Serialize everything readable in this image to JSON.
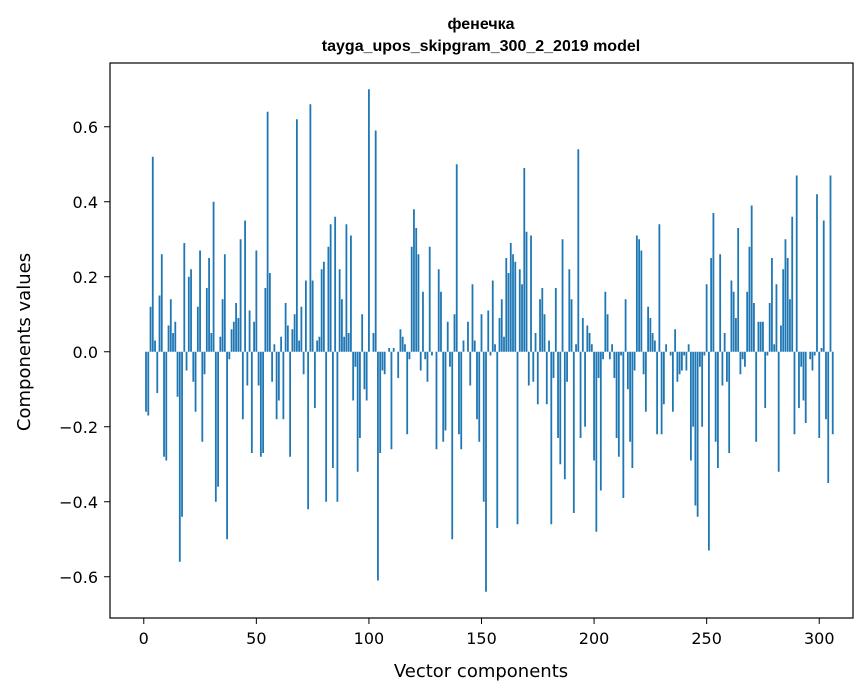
{
  "chart_data": {
    "type": "bar",
    "title": "фенечка",
    "subtitle": "tayga_upos_skipgram_300_2_2019 model",
    "xlabel": "Vector components",
    "ylabel": "Components values",
    "xlim": [
      -15,
      315
    ],
    "ylim": [
      -0.71,
      0.77
    ],
    "xticks": [
      0,
      50,
      100,
      150,
      200,
      250,
      300
    ],
    "yticks": [
      -0.6,
      -0.4,
      -0.2,
      0.0,
      0.2,
      0.4,
      0.6
    ],
    "xtick_labels": [
      "0",
      "50",
      "100",
      "150",
      "200",
      "250",
      "300"
    ],
    "ytick_labels": [
      "−0.6",
      "−0.4",
      "−0.2",
      "0.0",
      "0.2",
      "0.4",
      "0.6"
    ],
    "bar_color": "#1f77b4",
    "grid": false,
    "x_start": 0,
    "values": [
      0.0,
      -0.16,
      -0.17,
      0.12,
      0.52,
      0.03,
      -0.11,
      0.15,
      0.26,
      -0.28,
      -0.29,
      0.07,
      0.14,
      0.05,
      0.08,
      -0.12,
      -0.56,
      -0.44,
      0.29,
      -0.05,
      0.2,
      0.22,
      -0.08,
      -0.16,
      0.12,
      0.27,
      -0.24,
      -0.06,
      0.17,
      0.25,
      0.05,
      0.4,
      -0.4,
      -0.36,
      0.04,
      0.14,
      0.26,
      -0.5,
      -0.02,
      0.06,
      0.08,
      0.13,
      0.09,
      0.3,
      -0.18,
      0.35,
      -0.09,
      0.11,
      -0.27,
      0.08,
      0.27,
      -0.09,
      -0.28,
      -0.27,
      0.17,
      0.64,
      0.21,
      -0.08,
      0.02,
      -0.18,
      -0.13,
      0.04,
      -0.18,
      0.13,
      0.07,
      -0.28,
      0.06,
      0.1,
      0.62,
      0.03,
      0.12,
      -0.06,
      0.19,
      -0.42,
      0.66,
      0.19,
      -0.15,
      0.03,
      0.04,
      0.22,
      0.24,
      -0.4,
      0.28,
      0.34,
      -0.31,
      0.36,
      -0.4,
      0.22,
      0.14,
      0.04,
      0.34,
      0.05,
      0.31,
      -0.13,
      -0.04,
      -0.32,
      -0.23,
      0.1,
      -0.1,
      -0.13,
      0.7,
      0.0,
      0.05,
      0.59,
      -0.61,
      -0.27,
      -0.05,
      -0.06,
      0.0,
      0.01,
      -0.26,
      0.01,
      0.0,
      -0.07,
      0.06,
      0.04,
      0.02,
      -0.22,
      -0.02,
      0.28,
      0.38,
      0.33,
      0.26,
      -0.05,
      0.16,
      -0.02,
      -0.08,
      0.28,
      -0.01,
      0.0,
      -0.26,
      0.22,
      0.16,
      -0.24,
      -0.21,
      0.08,
      -0.04,
      -0.5,
      0.1,
      0.5,
      -0.22,
      -0.26,
      0.03,
      0.0,
      0.08,
      -0.09,
      0.18,
      0.03,
      -0.18,
      -0.24,
      0.1,
      -0.4,
      -0.64,
      0.11,
      -0.01,
      0.19,
      0.02,
      -0.47,
      0.09,
      0.14,
      0.04,
      0.25,
      0.21,
      0.29,
      0.26,
      0.24,
      -0.46,
      0.22,
      0.18,
      0.49,
      0.32,
      -0.09,
      0.31,
      -0.08,
      0.05,
      -0.14,
      0.14,
      0.17,
      0.1,
      -0.14,
      0.03,
      -0.46,
      -0.07,
      0.17,
      -0.23,
      -0.3,
      0.3,
      -0.34,
      -0.08,
      0.22,
      0.14,
      -0.43,
      0.02,
      0.54,
      -0.23,
      0.09,
      -0.2,
      0.07,
      0.05,
      0.02,
      -0.29,
      -0.48,
      -0.07,
      -0.37,
      -0.02,
      0.16,
      0.1,
      -0.02,
      0.02,
      -0.07,
      -0.23,
      -0.28,
      -0.01,
      -0.39,
      0.14,
      -0.1,
      -0.24,
      -0.31,
      -0.05,
      0.31,
      0.3,
      0.27,
      -0.06,
      -0.16,
      0.12,
      0.09,
      0.05,
      0.03,
      -0.22,
      0.34,
      -0.22,
      -0.14,
      0.02,
      0.0,
      -0.01,
      -0.16,
      0.06,
      -0.08,
      -0.06,
      -0.05,
      -0.01,
      -0.05,
      0.02,
      -0.29,
      -0.2,
      -0.41,
      -0.44,
      -0.04,
      -0.2,
      -0.01,
      0.18,
      -0.53,
      0.25,
      0.37,
      -0.24,
      -0.31,
      0.26,
      -0.09,
      0.05,
      -0.08,
      -0.27,
      0.19,
      0.16,
      0.09,
      0.33,
      -0.06,
      -0.02,
      -0.04,
      0.16,
      0.28,
      0.39,
      0.13,
      -0.24,
      0.08,
      0.08,
      0.08,
      -0.15,
      -0.01,
      0.13,
      0.25,
      0.02,
      0.18,
      -0.32,
      0.07,
      0.22,
      0.3,
      0.25,
      0.14,
      0.36,
      -0.22,
      0.47,
      -0.15,
      -0.04,
      -0.13,
      -0.19,
      0.0,
      -0.02,
      -0.05,
      -0.01,
      0.42,
      -0.23,
      0.01,
      0.35,
      -0.18,
      -0.35,
      0.47,
      -0.22
    ]
  }
}
